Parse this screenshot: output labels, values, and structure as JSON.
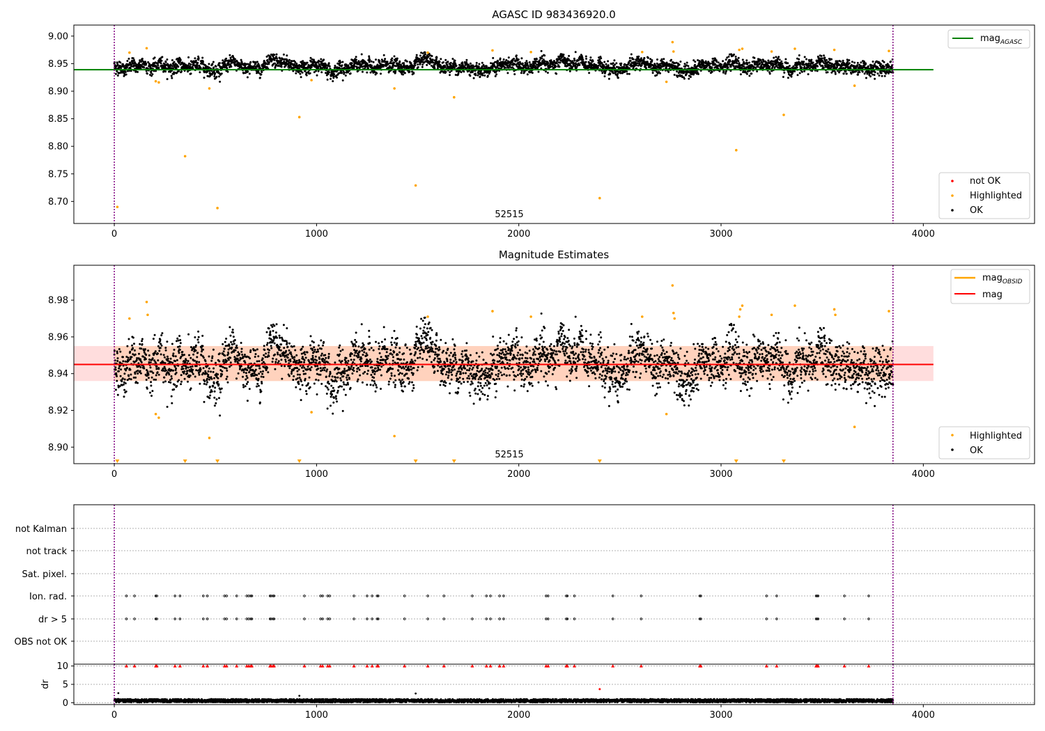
{
  "chart_data": [
    {
      "type": "scatter",
      "title": "AGASC ID 983436920.0",
      "annotation": "52515",
      "xlim": [
        -200,
        4550
      ],
      "ylim": [
        8.66,
        9.02
      ],
      "xticks": [
        0,
        1000,
        2000,
        3000,
        4000
      ],
      "yticks": [
        8.7,
        8.75,
        8.8,
        8.85,
        8.9,
        8.95,
        9.0
      ],
      "ytick_labels": [
        "8.70",
        "8.75",
        "8.80",
        "8.85",
        "8.90",
        "8.95",
        "9.00"
      ],
      "vlines": [
        0,
        3850
      ],
      "hlines": [
        {
          "name": "mag",
          "subscript": "AGASC",
          "y": 8.939,
          "x_range": [
            -200,
            4050
          ],
          "color": "#008000"
        }
      ],
      "scatter_ok": {
        "label": "OK",
        "color": "#000000",
        "n": 3850,
        "x_range": [
          0,
          3850
        ],
        "mean": 8.945,
        "std": 0.008
      },
      "highlighted": {
        "label": "Highlighted",
        "color": "#ffa500",
        "points": [
          [
            15,
            8.69
          ],
          [
            75,
            8.97
          ],
          [
            160,
            8.978
          ],
          [
            205,
            8.918
          ],
          [
            220,
            8.916
          ],
          [
            350,
            8.782
          ],
          [
            470,
            8.905
          ],
          [
            510,
            8.688
          ],
          [
            915,
            8.853
          ],
          [
            975,
            8.92
          ],
          [
            1385,
            8.905
          ],
          [
            1490,
            8.729
          ],
          [
            1550,
            8.97
          ],
          [
            1680,
            8.889
          ],
          [
            1870,
            8.974
          ],
          [
            2060,
            8.971
          ],
          [
            2400,
            8.706
          ],
          [
            2610,
            8.971
          ],
          [
            2730,
            8.917
          ],
          [
            2760,
            8.989
          ],
          [
            2765,
            8.972
          ],
          [
            3075,
            8.793
          ],
          [
            3090,
            8.975
          ],
          [
            3105,
            8.977
          ],
          [
            3250,
            8.972
          ],
          [
            3310,
            8.857
          ],
          [
            3365,
            8.977
          ],
          [
            3560,
            8.975
          ],
          [
            3660,
            8.91
          ],
          [
            3830,
            8.973
          ]
        ]
      },
      "legend_lines": [
        "mag_AGASC"
      ],
      "legend_markers": [
        "not OK",
        "Highlighted",
        "OK"
      ],
      "legend_placement": [
        "top-right",
        "bottom-right"
      ]
    },
    {
      "type": "scatter",
      "title": "Magnitude Estimates",
      "annotation": "52515",
      "xlim": [
        -200,
        4550
      ],
      "ylim": [
        8.891,
        8.999
      ],
      "xticks": [
        0,
        1000,
        2000,
        3000,
        4000
      ],
      "yticks": [
        8.9,
        8.92,
        8.94,
        8.96,
        8.98
      ],
      "ytick_labels": [
        "8.90",
        "8.92",
        "8.94",
        "8.96",
        "8.98"
      ],
      "vlines": [
        0,
        3850
      ],
      "hlines": [
        {
          "name": "mag",
          "y": 8.945,
          "x_range": [
            -200,
            4050
          ],
          "color": "#ff0000"
        }
      ],
      "band": {
        "y_range": [
          8.936,
          8.955
        ],
        "x_range": [
          -200,
          4050
        ],
        "color": "#ffdddd"
      },
      "inner_band": {
        "y_range": [
          8.936,
          8.955
        ],
        "x_range": [
          0,
          3850
        ],
        "color": "#ffd2bd"
      },
      "scatter_ok": {
        "label": "OK",
        "color": "#000000",
        "n": 3850,
        "x_range": [
          0,
          3850
        ],
        "mean": 8.945,
        "std": 0.008
      },
      "highlighted": {
        "label": "Highlighted",
        "color": "#ffa500",
        "points": [
          [
            75,
            8.97
          ],
          [
            160,
            8.979
          ],
          [
            165,
            8.972
          ],
          [
            205,
            8.918
          ],
          [
            220,
            8.916
          ],
          [
            470,
            8.905
          ],
          [
            975,
            8.919
          ],
          [
            1385,
            8.906
          ],
          [
            1550,
            8.971
          ],
          [
            1870,
            8.974
          ],
          [
            2060,
            8.971
          ],
          [
            2610,
            8.971
          ],
          [
            2730,
            8.918
          ],
          [
            2760,
            8.988
          ],
          [
            2765,
            8.973
          ],
          [
            2770,
            8.97
          ],
          [
            3090,
            8.971
          ],
          [
            3095,
            8.975
          ],
          [
            3105,
            8.977
          ],
          [
            3250,
            8.972
          ],
          [
            3365,
            8.977
          ],
          [
            3560,
            8.975
          ],
          [
            3565,
            8.972
          ],
          [
            3660,
            8.911
          ],
          [
            3830,
            8.974
          ]
        ]
      },
      "off_scale_markers": [
        15,
        350,
        510,
        915,
        1490,
        1680,
        2400,
        3075,
        3310
      ],
      "legend_lines": [
        "mag_OBSID",
        "mag"
      ],
      "legend_markers": [
        "Highlighted",
        "OK"
      ],
      "legend_placement": [
        "top-right",
        "bottom-right"
      ]
    },
    {
      "type": "scatter",
      "title": "",
      "xlim": [
        -200,
        4550
      ],
      "categories": [
        "not Kalman",
        "not track",
        "Sat. pixel.",
        "Ion. rad.",
        "dr > 5",
        "OBS not OK"
      ],
      "flagged_x": [
        60,
        100,
        205,
        210,
        300,
        325,
        440,
        460,
        545,
        555,
        605,
        655,
        665,
        675,
        680,
        770,
        775,
        785,
        790,
        940,
        1020,
        1030,
        1055,
        1065,
        1185,
        1250,
        1275,
        1300,
        1305,
        1435,
        1550,
        1630,
        1770,
        1840,
        1860,
        1905,
        1925,
        2135,
        2145,
        2235,
        2240,
        2275,
        2465,
        2605,
        2895,
        2900,
        3225,
        3275,
        3470,
        3475,
        3480,
        3610,
        3730
      ],
      "vlines": [
        0,
        3850
      ],
      "dr_panel": {
        "ylabel": "dr",
        "ylim": [
          -0.5,
          10.5
        ],
        "yticks": [
          0,
          5,
          10
        ],
        "ytick_labels": [
          "0",
          "5",
          "10"
        ],
        "typical_range": [
          0.1,
          1.0
        ],
        "outliers": [
          [
            20,
            2.6
          ],
          [
            915,
            1.9
          ],
          [
            1490,
            2.5
          ]
        ],
        "red_outlier": [
          2400,
          3.7
        ],
        "clipped_value": 10,
        "clipped_color": "#ff0000"
      },
      "xticks": [
        0,
        1000,
        2000,
        3000,
        4000
      ]
    }
  ]
}
